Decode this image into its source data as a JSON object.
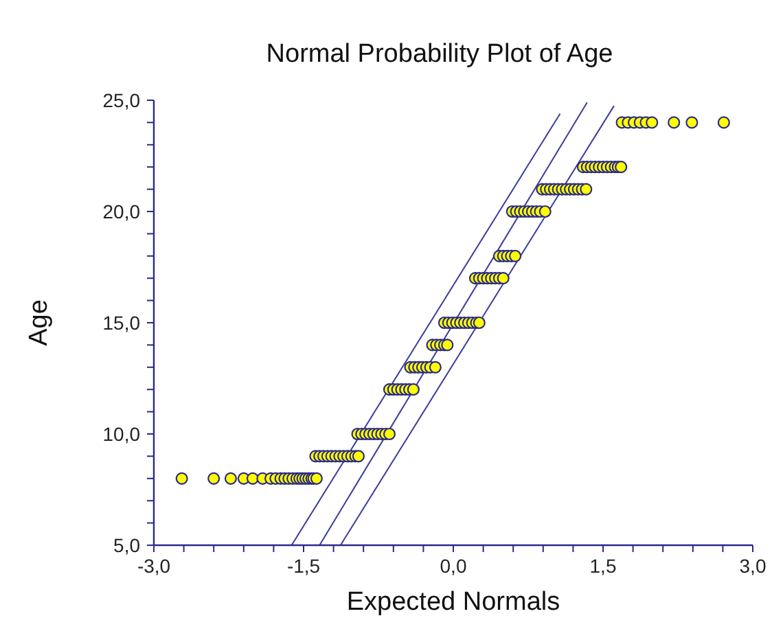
{
  "chart_data": {
    "type": "scatter",
    "title": "Normal Probability Plot of Age",
    "xlabel": "Expected Normals",
    "ylabel": "Age",
    "grid": false,
    "xlim": [
      -3,
      3
    ],
    "ylim": [
      5,
      25
    ],
    "xticks": [
      {
        "value": -3,
        "label": "-3,0"
      },
      {
        "value": -2.7,
        "label": null
      },
      {
        "value": -2.4,
        "label": null
      },
      {
        "value": -2.1,
        "label": null
      },
      {
        "value": -1.8,
        "label": null
      },
      {
        "value": -1.5,
        "label": "-1,5"
      },
      {
        "value": -1.2,
        "label": null
      },
      {
        "value": -0.9,
        "label": null
      },
      {
        "value": -0.6,
        "label": null
      },
      {
        "value": -0.3,
        "label": null
      },
      {
        "value": 0,
        "label": "0,0"
      },
      {
        "value": 0.3,
        "label": null
      },
      {
        "value": 0.6,
        "label": null
      },
      {
        "value": 0.9,
        "label": null
      },
      {
        "value": 1.2,
        "label": null
      },
      {
        "value": 1.5,
        "label": "1,5"
      },
      {
        "value": 1.8,
        "label": null
      },
      {
        "value": 2.1,
        "label": null
      },
      {
        "value": 2.4,
        "label": null
      },
      {
        "value": 2.7,
        "label": null
      },
      {
        "value": 3,
        "label": "3,0"
      }
    ],
    "yticks": [
      {
        "value": 5,
        "label": "5,0"
      },
      {
        "value": 6,
        "label": null
      },
      {
        "value": 7,
        "label": null
      },
      {
        "value": 8,
        "label": null
      },
      {
        "value": 9,
        "label": null
      },
      {
        "value": 10,
        "label": "10,0"
      },
      {
        "value": 11,
        "label": null
      },
      {
        "value": 12,
        "label": null
      },
      {
        "value": 13,
        "label": null
      },
      {
        "value": 14,
        "label": null
      },
      {
        "value": 15,
        "label": "15,0"
      },
      {
        "value": 16,
        "label": null
      },
      {
        "value": 17,
        "label": null
      },
      {
        "value": 18,
        "label": null
      },
      {
        "value": 19,
        "label": null
      },
      {
        "value": 20,
        "label": "20,0"
      },
      {
        "value": 21,
        "label": null
      },
      {
        "value": 22,
        "label": null
      },
      {
        "value": 23,
        "label": null
      },
      {
        "value": 24,
        "label": null
      },
      {
        "value": 25,
        "label": "25,0"
      }
    ],
    "series": [
      {
        "type": "line",
        "marker": "none",
        "color": "#3b3b9c",
        "x": [
          -1.62,
          1.07
        ],
        "values": [
          5,
          24.4
        ]
      },
      {
        "type": "line",
        "marker": "none",
        "color": "#3b3b9c",
        "x": [
          -1.34,
          1.34
        ],
        "values": [
          5,
          24.9
        ]
      },
      {
        "type": "line",
        "marker": "none",
        "color": "#3b3b9c",
        "x": [
          -1.13,
          1.61
        ],
        "values": [
          5,
          24.75
        ]
      },
      {
        "marker": "circle",
        "color": "#ffff00",
        "x": [
          -2.72,
          -2.4,
          -2.23,
          -2.1,
          -2.01,
          -1.91,
          -1.83,
          -1.78,
          -1.73,
          -1.69,
          -1.65,
          -1.61,
          -1.57,
          -1.54,
          -1.51,
          -1.48,
          -1.45,
          -1.42,
          -1.4,
          -1.37,
          -1.38,
          -1.34,
          -1.3,
          -1.26,
          -1.22,
          -1.18,
          -1.14,
          -1.1,
          -1.06,
          -1.02,
          -0.98,
          -0.95,
          -0.96,
          -0.92,
          -0.88,
          -0.84,
          -0.8,
          -0.76,
          -0.72,
          -0.68,
          -0.64,
          -0.64,
          -0.6,
          -0.56,
          -0.52,
          -0.48,
          -0.44,
          -0.4,
          -0.43,
          -0.39,
          -0.35,
          -0.31,
          -0.27,
          -0.23,
          -0.18,
          -0.21,
          -0.17,
          -0.13,
          -0.09,
          -0.06,
          -0.09,
          -0.05,
          -0.01,
          0.03,
          0.07,
          0.11,
          0.15,
          0.19,
          0.23,
          0.26,
          0.22,
          0.26,
          0.3,
          0.34,
          0.38,
          0.42,
          0.46,
          0.5,
          0.46,
          0.5,
          0.54,
          0.58,
          0.62,
          0.59,
          0.63,
          0.67,
          0.71,
          0.75,
          0.79,
          0.83,
          0.87,
          0.92,
          0.89,
          0.93,
          0.97,
          1.01,
          1.05,
          1.09,
          1.13,
          1.17,
          1.21,
          1.25,
          1.29,
          1.33,
          1.3,
          1.34,
          1.38,
          1.42,
          1.46,
          1.5,
          1.54,
          1.58,
          1.62,
          1.65,
          1.68,
          1.69,
          1.75,
          1.81,
          1.87,
          1.93,
          1.99,
          2.21,
          2.39,
          2.71
        ],
        "values": [
          8,
          8,
          8,
          8,
          8,
          8,
          8,
          8,
          8,
          8,
          8,
          8,
          8,
          8,
          8,
          8,
          8,
          8,
          8,
          8,
          9,
          9,
          9,
          9,
          9,
          9,
          9,
          9,
          9,
          9,
          9,
          9,
          10,
          10,
          10,
          10,
          10,
          10,
          10,
          10,
          10,
          12,
          12,
          12,
          12,
          12,
          12,
          12,
          13,
          13,
          13,
          13,
          13,
          13,
          13,
          14,
          14,
          14,
          14,
          14,
          15,
          15,
          15,
          15,
          15,
          15,
          15,
          15,
          15,
          15,
          17,
          17,
          17,
          17,
          17,
          17,
          17,
          17,
          18,
          18,
          18,
          18,
          18,
          20,
          20,
          20,
          20,
          20,
          20,
          20,
          20,
          20,
          21,
          21,
          21,
          21,
          21,
          21,
          21,
          21,
          21,
          21,
          21,
          21,
          22,
          22,
          22,
          22,
          22,
          22,
          22,
          22,
          22,
          22,
          22,
          24,
          24,
          24,
          24,
          24,
          24,
          24,
          24,
          24
        ]
      }
    ]
  }
}
